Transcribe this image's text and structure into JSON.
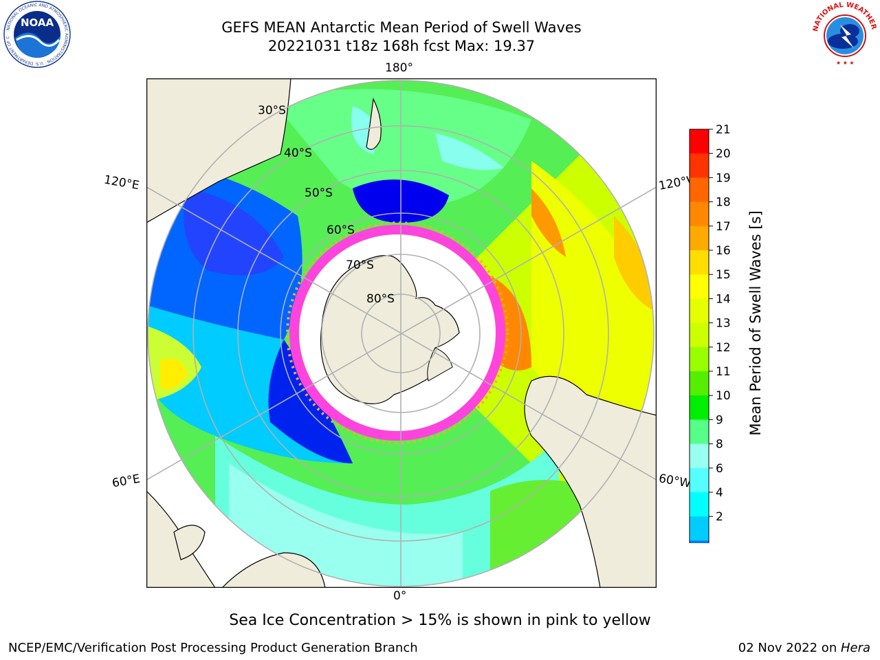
{
  "header": {
    "title_line1": "GEFS MEAN Antarctic Mean Period of Swell Waves",
    "title_line2": "20221031 t18z 168h fcst   Max: 19.37"
  },
  "logos": {
    "noaa": {
      "name": "noaa-logo",
      "text": "NOAA",
      "ring_text": "NATIONAL OCEANIC AND ATMOSPHERIC ADMINISTRATION · U.S. DEPARTMENT OF COMMERCE"
    },
    "nws": {
      "name": "national-weather-service-logo",
      "ring_text": "NATIONAL WEATHER SERVICE"
    }
  },
  "map": {
    "projection": "south-polar-stereographic",
    "longitude_labels": {
      "top": "180°",
      "bottom": "0°",
      "upper_left": "120°E",
      "upper_right": "120°W",
      "lower_left": "60°E",
      "lower_right": "60°W"
    },
    "latitude_labels": [
      "30°S",
      "40°S",
      "50°S",
      "60°S",
      "70°S",
      "80°S"
    ],
    "colors": {
      "land": "#efecdc",
      "ice_free_ocean": "#ffffff",
      "grid": "#b0b0b0",
      "sea_ice_pink": "#ff44dd",
      "sea_ice_yellow": "#ffaa33"
    }
  },
  "colorbar": {
    "title": "Mean Period of Swell Waves [s]",
    "ticks": [
      "21",
      "20",
      "19",
      "18",
      "17",
      "16",
      "15",
      "14",
      "13",
      "12",
      "11",
      "10",
      "9",
      "8",
      "6",
      "4",
      "2"
    ],
    "colors_top_to_bottom": [
      "#ff0000",
      "#ff3300",
      "#ff6600",
      "#ff8800",
      "#ffaa00",
      "#ffdd00",
      "#ffff00",
      "#e6ff00",
      "#ccff00",
      "#99ff00",
      "#55ee00",
      "#00ee00",
      "#55ff88",
      "#99ffee",
      "#55ffff",
      "#00ffff",
      "#00ccff",
      "#0077ff",
      "#0000ff"
    ],
    "extend": "min"
  },
  "caption": "Sea Ice Concentration > 15% is shown in pink to yellow",
  "footer": {
    "left": "NCEP/EMC/Verification Post Processing Product Generation Branch",
    "right_date": "02 Nov 2022 on ",
    "right_host": "Hera"
  }
}
